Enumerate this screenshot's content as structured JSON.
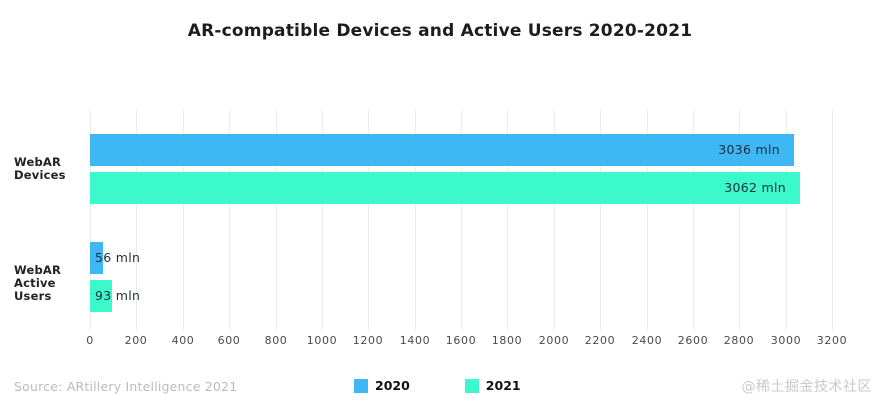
{
  "title": "AR-compatible Devices and Active Users 2020-2021",
  "source_note": "Source: ARtillery Intelligence 2021",
  "watermark": "@稀土掘金技术社区",
  "colors": {
    "series_2020": "#3eb8f3",
    "series_2021": "#3bf9cb",
    "title_text": "#1d1d1f",
    "bar_value_text": "#1f2d3d",
    "tick_text": "#4a4a4a",
    "gridline": "#ececec",
    "source_text": "#b9bcbf",
    "watermark_text": "#c9c9c9"
  },
  "legend": {
    "items": [
      {
        "label": "2020",
        "color": "#3eb8f3"
      },
      {
        "label": "2021",
        "color": "#3bf9cb"
      }
    ],
    "position": "bottom-center"
  },
  "chart_data": {
    "type": "bar",
    "orientation": "horizontal",
    "title": "AR-compatible Devices and Active Users 2020-2021",
    "categories": [
      "WebAR Devices",
      "WebAR Active Users"
    ],
    "category_label_lines": [
      [
        "WebAR",
        "Devices"
      ],
      [
        "WebAR",
        "Active Users"
      ]
    ],
    "series": [
      {
        "name": "2020",
        "color": "#3eb8f3",
        "values": [
          3036,
          56
        ]
      },
      {
        "name": "2021",
        "color": "#3bf9cb",
        "values": [
          3062,
          93
        ]
      }
    ],
    "value_labels": [
      [
        "3036 mln",
        "56 mln"
      ],
      [
        "3062 mln",
        "93 mln"
      ]
    ],
    "value_unit": "mln",
    "xlabel": "",
    "ylabel": "",
    "xlim": [
      0,
      3200
    ],
    "xticks": [
      0,
      200,
      400,
      600,
      800,
      1000,
      1200,
      1400,
      1600,
      1800,
      2000,
      2200,
      2400,
      2600,
      2800,
      3000,
      3200
    ],
    "grid": true,
    "legend_position": "bottom"
  }
}
